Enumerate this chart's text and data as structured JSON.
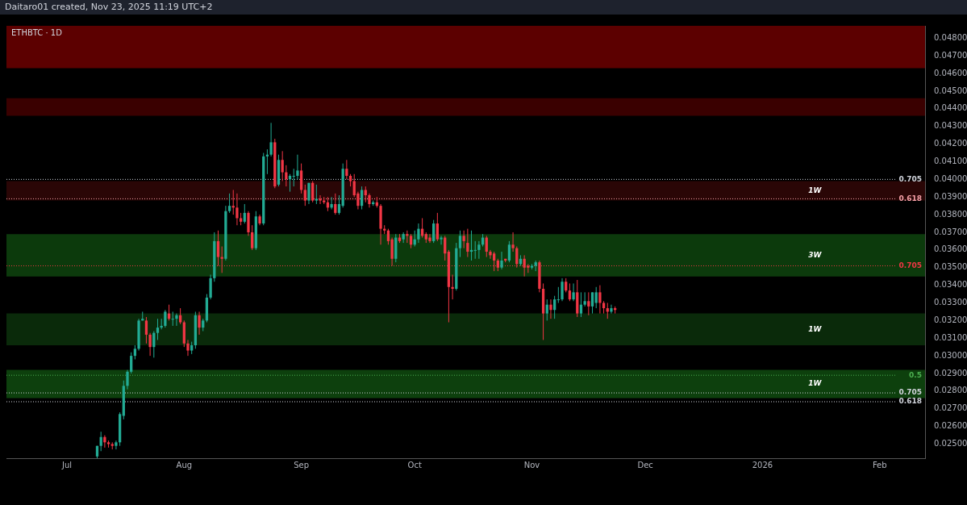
{
  "chart_data": {
    "type": "candlestick",
    "title": "ETHBTC · 1D",
    "annotations": [
      "Daitaro01 created, Nov 23, 2025 11:19 UTC+2",
      "0.705",
      "0.618",
      "0.705",
      "0.5",
      "0.705",
      "0.618"
    ],
    "x": [
      "2025-07-09",
      "2025-07-10",
      "2025-07-11",
      "2025-07-12",
      "2025-07-13",
      "2025-07-14",
      "2025-07-15",
      "2025-07-16",
      "2025-07-17",
      "2025-07-18",
      "2025-07-19",
      "2025-07-20",
      "2025-07-21",
      "2025-07-22",
      "2025-07-23",
      "2025-07-24",
      "2025-07-25",
      "2025-07-26",
      "2025-07-27",
      "2025-07-28",
      "2025-07-29",
      "2025-07-30",
      "2025-07-31",
      "2025-08-01",
      "2025-08-02",
      "2025-08-03",
      "2025-08-04",
      "2025-08-05",
      "2025-08-06",
      "2025-08-07",
      "2025-08-08",
      "2025-08-09",
      "2025-08-10",
      "2025-08-11",
      "2025-08-12",
      "2025-08-13",
      "2025-08-14",
      "2025-08-15",
      "2025-08-16",
      "2025-08-17",
      "2025-08-18",
      "2025-08-19",
      "2025-08-20",
      "2025-08-21",
      "2025-08-22",
      "2025-08-23",
      "2025-08-24",
      "2025-08-25",
      "2025-08-26",
      "2025-08-27",
      "2025-08-28",
      "2025-08-29",
      "2025-08-30",
      "2025-08-31",
      "2025-09-01",
      "2025-09-02",
      "2025-09-03",
      "2025-09-04",
      "2025-09-05",
      "2025-09-06",
      "2025-09-07",
      "2025-09-08",
      "2025-09-09",
      "2025-09-10",
      "2025-09-11",
      "2025-09-12",
      "2025-09-13",
      "2025-09-14",
      "2025-09-15",
      "2025-09-16",
      "2025-09-17",
      "2025-09-18",
      "2025-09-19",
      "2025-09-20",
      "2025-09-21",
      "2025-09-22",
      "2025-09-23",
      "2025-09-24",
      "2025-09-25",
      "2025-09-26",
      "2025-09-27",
      "2025-09-28",
      "2025-09-29",
      "2025-09-30",
      "2025-10-01",
      "2025-10-02",
      "2025-10-03",
      "2025-10-04",
      "2025-10-05",
      "2025-10-06",
      "2025-10-07",
      "2025-10-08",
      "2025-10-09",
      "2025-10-10",
      "2025-10-11",
      "2025-10-12",
      "2025-10-13",
      "2025-10-14",
      "2025-10-15",
      "2025-10-16",
      "2025-10-17",
      "2025-10-18",
      "2025-10-19",
      "2025-10-20",
      "2025-10-21",
      "2025-10-22",
      "2025-10-23",
      "2025-10-24",
      "2025-10-25",
      "2025-10-26",
      "2025-10-27",
      "2025-10-28",
      "2025-10-29",
      "2025-10-30",
      "2025-10-31",
      "2025-11-01",
      "2025-11-02",
      "2025-11-03",
      "2025-11-04",
      "2025-11-05",
      "2025-11-06",
      "2025-11-07",
      "2025-11-08",
      "2025-11-09",
      "2025-11-10",
      "2025-11-11",
      "2025-11-12",
      "2025-11-13",
      "2025-11-14",
      "2025-11-15",
      "2025-11-16",
      "2025-11-17",
      "2025-11-18",
      "2025-11-19",
      "2025-11-20",
      "2025-11-21",
      "2025-11-22",
      "2025-11-23"
    ],
    "ohlc": [
      [
        0.0243,
        0.0249,
        0.0242,
        0.0249
      ],
      [
        0.0249,
        0.0257,
        0.0246,
        0.0254
      ],
      [
        0.0254,
        0.0255,
        0.0248,
        0.0251
      ],
      [
        0.0251,
        0.0252,
        0.0248,
        0.025
      ],
      [
        0.025,
        0.0251,
        0.0247,
        0.0249
      ],
      [
        0.0249,
        0.0252,
        0.0247,
        0.0251
      ],
      [
        0.0251,
        0.0268,
        0.0249,
        0.0267
      ],
      [
        0.0266,
        0.0286,
        0.0264,
        0.0283
      ],
      [
        0.0283,
        0.0292,
        0.0281,
        0.0291
      ],
      [
        0.0291,
        0.0302,
        0.029,
        0.03
      ],
      [
        0.03,
        0.0306,
        0.0298,
        0.0304
      ],
      [
        0.0304,
        0.0321,
        0.0303,
        0.032
      ],
      [
        0.032,
        0.0325,
        0.032,
        0.0321
      ],
      [
        0.032,
        0.0322,
        0.0307,
        0.0312
      ],
      [
        0.0312,
        0.0313,
        0.03,
        0.0305
      ],
      [
        0.0305,
        0.0314,
        0.0299,
        0.0313
      ],
      [
        0.0313,
        0.0321,
        0.0309,
        0.0316
      ],
      [
        0.0316,
        0.0321,
        0.0315,
        0.0317
      ],
      [
        0.0317,
        0.0326,
        0.0316,
        0.0325
      ],
      [
        0.0324,
        0.0329,
        0.032,
        0.0321
      ],
      [
        0.0321,
        0.0325,
        0.0317,
        0.0321
      ],
      [
        0.0321,
        0.0324,
        0.0317,
        0.0323
      ],
      [
        0.0323,
        0.0327,
        0.0318,
        0.0319
      ],
      [
        0.0319,
        0.032,
        0.0305,
        0.0307
      ],
      [
        0.0307,
        0.0309,
        0.03,
        0.0303
      ],
      [
        0.0303,
        0.0308,
        0.0301,
        0.0306
      ],
      [
        0.0306,
        0.0325,
        0.0304,
        0.0323
      ],
      [
        0.0323,
        0.0325,
        0.0312,
        0.0316
      ],
      [
        0.0316,
        0.0321,
        0.0314,
        0.032
      ],
      [
        0.032,
        0.0335,
        0.0319,
        0.0333
      ],
      [
        0.0333,
        0.0346,
        0.0332,
        0.0344
      ],
      [
        0.0344,
        0.037,
        0.0342,
        0.0365
      ],
      [
        0.0365,
        0.0371,
        0.0351,
        0.0356
      ],
      [
        0.0356,
        0.0362,
        0.0347,
        0.0355
      ],
      [
        0.0355,
        0.0385,
        0.0354,
        0.0382
      ],
      [
        0.0382,
        0.0392,
        0.0381,
        0.0385
      ],
      [
        0.0385,
        0.0394,
        0.038,
        0.0384
      ],
      [
        0.0384,
        0.0392,
        0.0374,
        0.0378
      ],
      [
        0.0378,
        0.0381,
        0.0374,
        0.0376
      ],
      [
        0.0376,
        0.0386,
        0.0375,
        0.0381
      ],
      [
        0.0381,
        0.0382,
        0.0368,
        0.037
      ],
      [
        0.037,
        0.0374,
        0.036,
        0.0361
      ],
      [
        0.0361,
        0.0382,
        0.036,
        0.0379
      ],
      [
        0.0379,
        0.038,
        0.0374,
        0.0375
      ],
      [
        0.0375,
        0.0415,
        0.0374,
        0.0413
      ],
      [
        0.0413,
        0.0417,
        0.0403,
        0.0414
      ],
      [
        0.0414,
        0.0432,
        0.0413,
        0.0421
      ],
      [
        0.0421,
        0.0423,
        0.0395,
        0.0396
      ],
      [
        0.0397,
        0.0414,
        0.0396,
        0.0411
      ],
      [
        0.0411,
        0.0416,
        0.0399,
        0.0404
      ],
      [
        0.0404,
        0.0408,
        0.0396,
        0.04
      ],
      [
        0.04,
        0.0403,
        0.0393,
        0.0402
      ],
      [
        0.0402,
        0.0406,
        0.0396,
        0.0402
      ],
      [
        0.0402,
        0.0414,
        0.04,
        0.0405
      ],
      [
        0.0405,
        0.0409,
        0.0392,
        0.0394
      ],
      [
        0.0394,
        0.0397,
        0.0385,
        0.0388
      ],
      [
        0.0388,
        0.0398,
        0.0386,
        0.0398
      ],
      [
        0.0398,
        0.0399,
        0.0387,
        0.0388
      ],
      [
        0.0388,
        0.0397,
        0.0386,
        0.0389
      ],
      [
        0.0389,
        0.0391,
        0.0386,
        0.0388
      ],
      [
        0.0388,
        0.039,
        0.0386,
        0.0387
      ],
      [
        0.0387,
        0.039,
        0.0382,
        0.0384
      ],
      [
        0.0384,
        0.039,
        0.0383,
        0.0386
      ],
      [
        0.0386,
        0.0392,
        0.038,
        0.0381
      ],
      [
        0.0381,
        0.0391,
        0.038,
        0.0386
      ],
      [
        0.0385,
        0.0409,
        0.0384,
        0.0406
      ],
      [
        0.0406,
        0.0411,
        0.04,
        0.0402
      ],
      [
        0.0402,
        0.0403,
        0.0396,
        0.0399
      ],
      [
        0.0399,
        0.0403,
        0.039,
        0.0391
      ],
      [
        0.0392,
        0.0393,
        0.0383,
        0.0385
      ],
      [
        0.0385,
        0.0396,
        0.0383,
        0.0394
      ],
      [
        0.0394,
        0.0396,
        0.0387,
        0.0391
      ],
      [
        0.0391,
        0.0392,
        0.0384,
        0.0386
      ],
      [
        0.0386,
        0.0388,
        0.0385,
        0.0387
      ],
      [
        0.0387,
        0.039,
        0.0384,
        0.0385
      ],
      [
        0.0385,
        0.0386,
        0.0363,
        0.0372
      ],
      [
        0.0372,
        0.0374,
        0.0369,
        0.0371
      ],
      [
        0.0371,
        0.0372,
        0.0363,
        0.0365
      ],
      [
        0.0366,
        0.0367,
        0.0351,
        0.0355
      ],
      [
        0.0355,
        0.0369,
        0.0353,
        0.0367
      ],
      [
        0.0367,
        0.0369,
        0.0364,
        0.0365
      ],
      [
        0.0366,
        0.037,
        0.0364,
        0.0369
      ],
      [
        0.0369,
        0.0371,
        0.0364,
        0.0368
      ],
      [
        0.0368,
        0.0369,
        0.0361,
        0.0363
      ],
      [
        0.0363,
        0.0371,
        0.0362,
        0.0366
      ],
      [
        0.0366,
        0.0375,
        0.0364,
        0.0372
      ],
      [
        0.0372,
        0.0378,
        0.0367,
        0.0368
      ],
      [
        0.0369,
        0.037,
        0.0364,
        0.0366
      ],
      [
        0.0367,
        0.0369,
        0.0364,
        0.0365
      ],
      [
        0.0365,
        0.0377,
        0.0364,
        0.0375
      ],
      [
        0.0375,
        0.0381,
        0.0365,
        0.0366
      ],
      [
        0.0366,
        0.0368,
        0.0363,
        0.0367
      ],
      [
        0.0367,
        0.0368,
        0.0354,
        0.0358
      ],
      [
        0.0359,
        0.036,
        0.0319,
        0.0339
      ],
      [
        0.0339,
        0.0346,
        0.0332,
        0.0338
      ],
      [
        0.0338,
        0.0364,
        0.0337,
        0.0361
      ],
      [
        0.0361,
        0.0371,
        0.0356,
        0.0368
      ],
      [
        0.0368,
        0.0371,
        0.0361,
        0.0365
      ],
      [
        0.0364,
        0.0372,
        0.0356,
        0.0359
      ],
      [
        0.0359,
        0.0371,
        0.0354,
        0.036
      ],
      [
        0.036,
        0.0365,
        0.0355,
        0.036
      ],
      [
        0.036,
        0.0365,
        0.0355,
        0.0363
      ],
      [
        0.0363,
        0.0369,
        0.0362,
        0.0367
      ],
      [
        0.0367,
        0.0368,
        0.0356,
        0.0359
      ],
      [
        0.0359,
        0.036,
        0.0355,
        0.0357
      ],
      [
        0.0358,
        0.0359,
        0.0348,
        0.0354
      ],
      [
        0.0354,
        0.0355,
        0.0348,
        0.035
      ],
      [
        0.035,
        0.0359,
        0.0349,
        0.0354
      ],
      [
        0.0355,
        0.0355,
        0.0353,
        0.0354
      ],
      [
        0.0354,
        0.0365,
        0.0353,
        0.0363
      ],
      [
        0.0363,
        0.037,
        0.0359,
        0.0361
      ],
      [
        0.0361,
        0.0362,
        0.035,
        0.0352
      ],
      [
        0.0352,
        0.0357,
        0.0351,
        0.0355
      ],
      [
        0.0355,
        0.0357,
        0.0345,
        0.035
      ],
      [
        0.0351,
        0.0352,
        0.0347,
        0.035
      ],
      [
        0.035,
        0.0352,
        0.0349,
        0.0351
      ],
      [
        0.0351,
        0.0354,
        0.0348,
        0.0353
      ],
      [
        0.0353,
        0.0354,
        0.0336,
        0.0338
      ],
      [
        0.0338,
        0.0341,
        0.0309,
        0.0324
      ],
      [
        0.0324,
        0.0332,
        0.032,
        0.0329
      ],
      [
        0.0329,
        0.0332,
        0.0321,
        0.0326
      ],
      [
        0.0326,
        0.0334,
        0.0321,
        0.0332
      ],
      [
        0.0332,
        0.0339,
        0.033,
        0.0332
      ],
      [
        0.0332,
        0.0344,
        0.0331,
        0.0342
      ],
      [
        0.0342,
        0.0344,
        0.0336,
        0.0337
      ],
      [
        0.0337,
        0.0341,
        0.0331,
        0.0332
      ],
      [
        0.0332,
        0.0341,
        0.0331,
        0.0336
      ],
      [
        0.0336,
        0.0343,
        0.0322,
        0.0324
      ],
      [
        0.0324,
        0.0336,
        0.0322,
        0.0329
      ],
      [
        0.0329,
        0.0336,
        0.0328,
        0.0331
      ],
      [
        0.0331,
        0.0336,
        0.0323,
        0.0328
      ],
      [
        0.0328,
        0.0336,
        0.0324,
        0.0336
      ],
      [
        0.033,
        0.0339,
        0.0327,
        0.0336
      ],
      [
        0.0336,
        0.034,
        0.0324,
        0.033
      ],
      [
        0.033,
        0.0331,
        0.0324,
        0.0327
      ],
      [
        0.0327,
        0.033,
        0.0321,
        0.0325
      ],
      [
        0.0325,
        0.0329,
        0.0324,
        0.0327
      ],
      [
        0.0327,
        0.0328,
        0.0324,
        0.0326
      ]
    ],
    "colors": [
      "#22ab94",
      "#22ab94",
      "#f23645",
      "#f23645",
      "#f23645",
      "#22ab94",
      "#22ab94",
      "#22ab94",
      "#22ab94",
      "#22ab94",
      "#22ab94",
      "#22ab94",
      "#22ab94",
      "#f23645",
      "#f23645",
      "#22ab94",
      "#22ab94",
      "#22ab94",
      "#22ab94",
      "#f23645",
      "#22ab94",
      "#22ab94",
      "#f23645",
      "#f23645",
      "#f23645",
      "#22ab94",
      "#22ab94",
      "#f23645",
      "#22ab94",
      "#22ab94",
      "#22ab94",
      "#22ab94",
      "#f23645",
      "#f23645",
      "#22ab94",
      "#22ab94",
      "#f23645",
      "#f23645",
      "#f23645",
      "#22ab94",
      "#f23645",
      "#f23645",
      "#22ab94",
      "#f23645",
      "#22ab94",
      "#22ab94",
      "#22ab94",
      "#f23645",
      "#22ab94",
      "#f23645",
      "#f23645",
      "#22ab94",
      "#22ab94",
      "#22ab94",
      "#f23645",
      "#f23645",
      "#22ab94",
      "#f23645",
      "#22ab94",
      "#f23645",
      "#f23645",
      "#f23645",
      "#22ab94",
      "#f23645",
      "#22ab94",
      "#22ab94",
      "#f23645",
      "#f23645",
      "#f23645",
      "#f23645",
      "#22ab94",
      "#f23645",
      "#f23645",
      "#22ab94",
      "#f23645",
      "#f23645",
      "#f23645",
      "#f23645",
      "#f23645",
      "#22ab94",
      "#f23645",
      "#22ab94",
      "#f23645",
      "#f23645",
      "#22ab94",
      "#22ab94",
      "#f23645",
      "#f23645",
      "#f23645",
      "#22ab94",
      "#f23645",
      "#22ab94",
      "#f23645",
      "#f23645",
      "#f23645",
      "#22ab94",
      "#22ab94",
      "#f23645",
      "#f23645",
      "#22ab94",
      "#22ab94",
      "#22ab94",
      "#22ab94",
      "#f23645",
      "#f23645",
      "#f23645",
      "#f23645",
      "#22ab94",
      "#f23645",
      "#22ab94",
      "#f23645",
      "#f23645",
      "#22ab94",
      "#f23645",
      "#f23645",
      "#22ab94",
      "#22ab94",
      "#f23645",
      "#f23645",
      "#22ab94",
      "#f23645",
      "#22ab94",
      "#22ab94",
      "#22ab94",
      "#f23645",
      "#f23645",
      "#22ab94",
      "#f23645",
      "#22ab94",
      "#22ab94",
      "#f23645",
      "#22ab94",
      "#22ab94",
      "#f23645",
      "#f23645",
      "#f23645",
      "#22ab94",
      "#f23645"
    ],
    "xlim": [
      "2025-06-15",
      "2026-02-13"
    ],
    "xticks": [
      {
        "value": "2025-07-01",
        "label": "Jul"
      },
      {
        "value": "2025-08-01",
        "label": "Aug"
      },
      {
        "value": "2025-09-01",
        "label": "Sep"
      },
      {
        "value": "2025-10-01",
        "label": "Oct"
      },
      {
        "value": "2025-11-01",
        "label": "Nov"
      },
      {
        "value": "2025-12-01",
        "label": "Dec"
      },
      {
        "value": "2026-01-01",
        "label": "2026"
      },
      {
        "value": "2026-02-01",
        "label": "Feb"
      }
    ],
    "ylim": [
      0.0242,
      0.0487
    ],
    "yticks": [
      {
        "value": 0.025,
        "label": "0.02500"
      },
      {
        "value": 0.026,
        "label": "0.02600"
      },
      {
        "value": 0.027,
        "label": "0.02700"
      },
      {
        "value": 0.028,
        "label": "0.02800"
      },
      {
        "value": 0.029,
        "label": "0.02900"
      },
      {
        "value": 0.03,
        "label": "0.03000"
      },
      {
        "value": 0.031,
        "label": "0.03100"
      },
      {
        "value": 0.032,
        "label": "0.03200"
      },
      {
        "value": 0.033,
        "label": "0.03300"
      },
      {
        "value": 0.034,
        "label": "0.03400"
      },
      {
        "value": 0.035,
        "label": "0.03500"
      },
      {
        "value": 0.036,
        "label": "0.03600"
      },
      {
        "value": 0.037,
        "label": "0.03700"
      },
      {
        "value": 0.038,
        "label": "0.03800"
      },
      {
        "value": 0.039,
        "label": "0.03900"
      },
      {
        "value": 0.04,
        "label": "0.04000"
      },
      {
        "value": 0.041,
        "label": "0.04100"
      },
      {
        "value": 0.042,
        "label": "0.04200"
      },
      {
        "value": 0.043,
        "label": "0.04300"
      },
      {
        "value": 0.044,
        "label": "0.04400"
      },
      {
        "value": 0.045,
        "label": "0.04500"
      },
      {
        "value": 0.046,
        "label": "0.04600"
      },
      {
        "value": 0.047,
        "label": "0.04700"
      },
      {
        "value": 0.048,
        "label": "0.04800"
      }
    ],
    "bands": [
      {
        "axis": "y",
        "from": 0.0463,
        "to": 0.0487,
        "color": "#5c0000"
      },
      {
        "axis": "y",
        "from": 0.0436,
        "to": 0.0446,
        "color": "#3a0000"
      },
      {
        "axis": "y",
        "from": 0.0388,
        "to": 0.0399,
        "label": "1W",
        "color": "#2a0606"
      },
      {
        "axis": "y",
        "from": 0.0345,
        "to": 0.0369,
        "label": "3W",
        "color": "#0c3a0c"
      },
      {
        "axis": "y",
        "from": 0.0306,
        "to": 0.0324,
        "label": "1W",
        "color": "#0a2a0a"
      },
      {
        "axis": "y",
        "from": 0.0276,
        "to": 0.0292,
        "label": "1W",
        "color": "#0d400d"
      }
    ],
    "ref_lines": [
      {
        "axis": "y",
        "value": 0.04,
        "color": "#d1d4dc",
        "line_style": "dotted"
      },
      {
        "axis": "y",
        "value": 0.0389,
        "color": "#f7a1a8",
        "line_style": "dotted"
      },
      {
        "axis": "y",
        "value": 0.0351,
        "color": "#f23645",
        "line_style": "dotted"
      },
      {
        "axis": "y",
        "value": 0.0289,
        "color": "#4caf50",
        "line_style": "dotted"
      },
      {
        "axis": "y",
        "value": 0.0279,
        "color": "#d1d4dc",
        "line_style": "dotted"
      },
      {
        "axis": "y",
        "value": 0.0274,
        "color": "#d1d4dc",
        "line_style": "dotted"
      }
    ]
  }
}
